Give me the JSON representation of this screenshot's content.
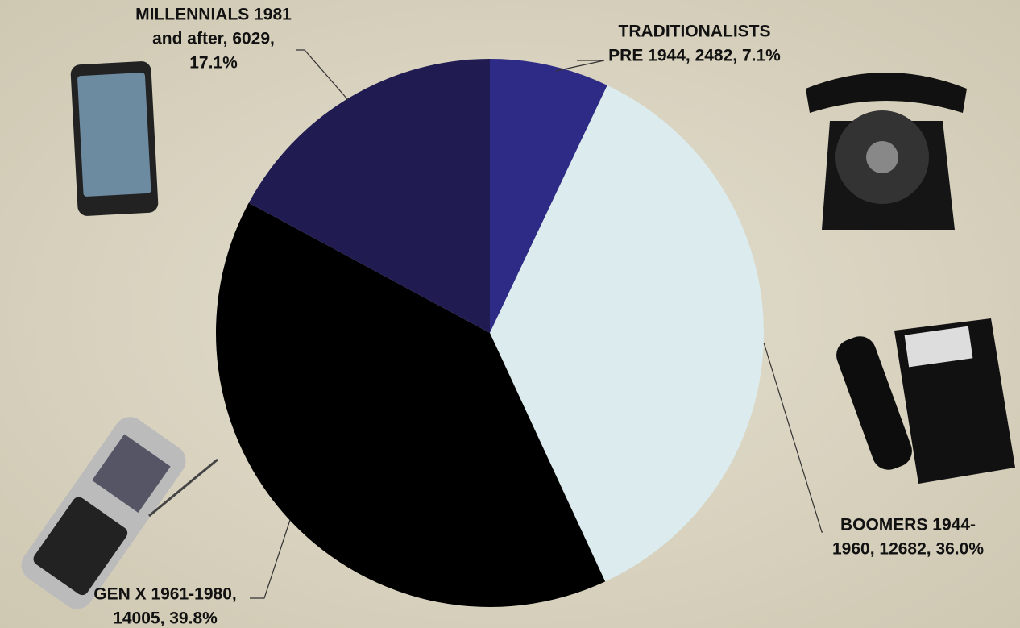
{
  "chart_data": {
    "type": "pie",
    "labels": [
      [
        "TRADITIONALISTS",
        "PRE 1944, 2482, 7.1%"
      ],
      [
        "BOOMERS 1944-",
        "1960, 12682, 36.0%"
      ],
      [
        "GEN X 1961-1980,",
        "14005, 39.8%"
      ],
      [
        "MILLENNIALS  1981",
        "and after, 6029,",
        "17.1%"
      ]
    ],
    "values": [
      2482,
      12682,
      14005,
      6029
    ],
    "colors": [
      "#2e2b87",
      "#dbebee",
      "#000000",
      "#201c52"
    ]
  }
}
